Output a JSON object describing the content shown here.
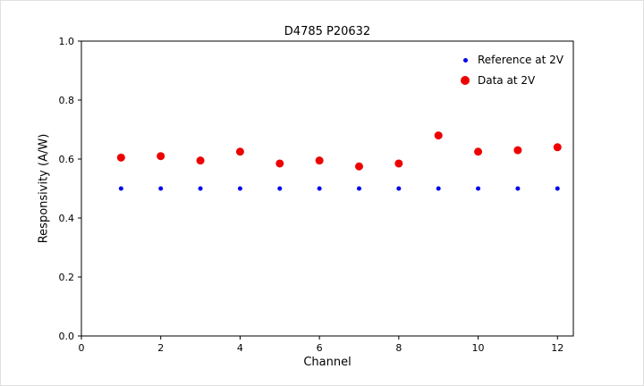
{
  "chart_data": {
    "type": "scatter",
    "title": "D4785 P20632",
    "xlabel": "Channel",
    "ylabel": "Responsivity (A/W)",
    "xlim": [
      0,
      12.4
    ],
    "ylim": [
      0,
      1.0
    ],
    "x_ticks": [
      0,
      2,
      4,
      6,
      8,
      10,
      12
    ],
    "y_ticks": [
      0,
      0.2,
      0.4,
      0.6,
      0.8,
      1.0
    ],
    "grid": false,
    "legend_position": "upper right",
    "x": [
      1,
      2,
      3,
      4,
      5,
      6,
      7,
      8,
      9,
      10,
      11,
      12
    ],
    "series": [
      {
        "name": "Reference at 2V",
        "color": "#0000ee",
        "marker_size": 2.5,
        "values": [
          0.5,
          0.5,
          0.5,
          0.5,
          0.5,
          0.5,
          0.5,
          0.5,
          0.5,
          0.5,
          0.5,
          0.5
        ]
      },
      {
        "name": "Data at 2V",
        "color": "#ee0000",
        "marker_size": 4.5,
        "values": [
          0.605,
          0.61,
          0.595,
          0.625,
          0.585,
          0.595,
          0.575,
          0.585,
          0.68,
          0.625,
          0.63,
          0.64
        ]
      }
    ]
  }
}
